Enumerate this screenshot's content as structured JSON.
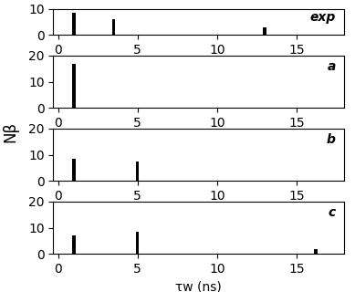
{
  "ylabel": "Nβ",
  "chart_data": [
    {
      "type": "bar",
      "annotation": "exp",
      "x": [
        1.0,
        3.5,
        13.0
      ],
      "values": [
        8.5,
        6.2,
        3.0
      ],
      "color": "black",
      "xlim": [
        -0.3,
        18.0
      ],
      "xticks": [
        0,
        5,
        10,
        15
      ],
      "ylim": [
        0,
        10
      ],
      "yticks": [
        0,
        10
      ]
    },
    {
      "type": "bar",
      "annotation": "a",
      "x": [
        1.0
      ],
      "values": [
        17.0
      ],
      "color": "black",
      "xlim": [
        -0.3,
        18.0
      ],
      "xticks": [
        0,
        5,
        10,
        15
      ],
      "ylim": [
        0,
        20
      ],
      "yticks": [
        0,
        10,
        20
      ]
    },
    {
      "type": "bar",
      "annotation": "b",
      "x": [
        1.0,
        5.0
      ],
      "values": [
        8.5,
        7.5
      ],
      "color": "black",
      "xlim": [
        -0.3,
        18.0
      ],
      "xticks": [
        0,
        5,
        10,
        15
      ],
      "ylim": [
        0,
        20
      ],
      "yticks": [
        0,
        10,
        20
      ]
    },
    {
      "type": "bar",
      "annotation": "c",
      "x": [
        1.0,
        5.0,
        16.2
      ],
      "values": [
        7.0,
        8.5,
        2.0
      ],
      "color": "black",
      "xlim": [
        -0.3,
        18.0
      ],
      "xticks": [
        0,
        5,
        10,
        15
      ],
      "ylim": [
        0,
        20
      ],
      "yticks": [
        0,
        10,
        20
      ],
      "xlabel": "τw (ns)"
    }
  ]
}
